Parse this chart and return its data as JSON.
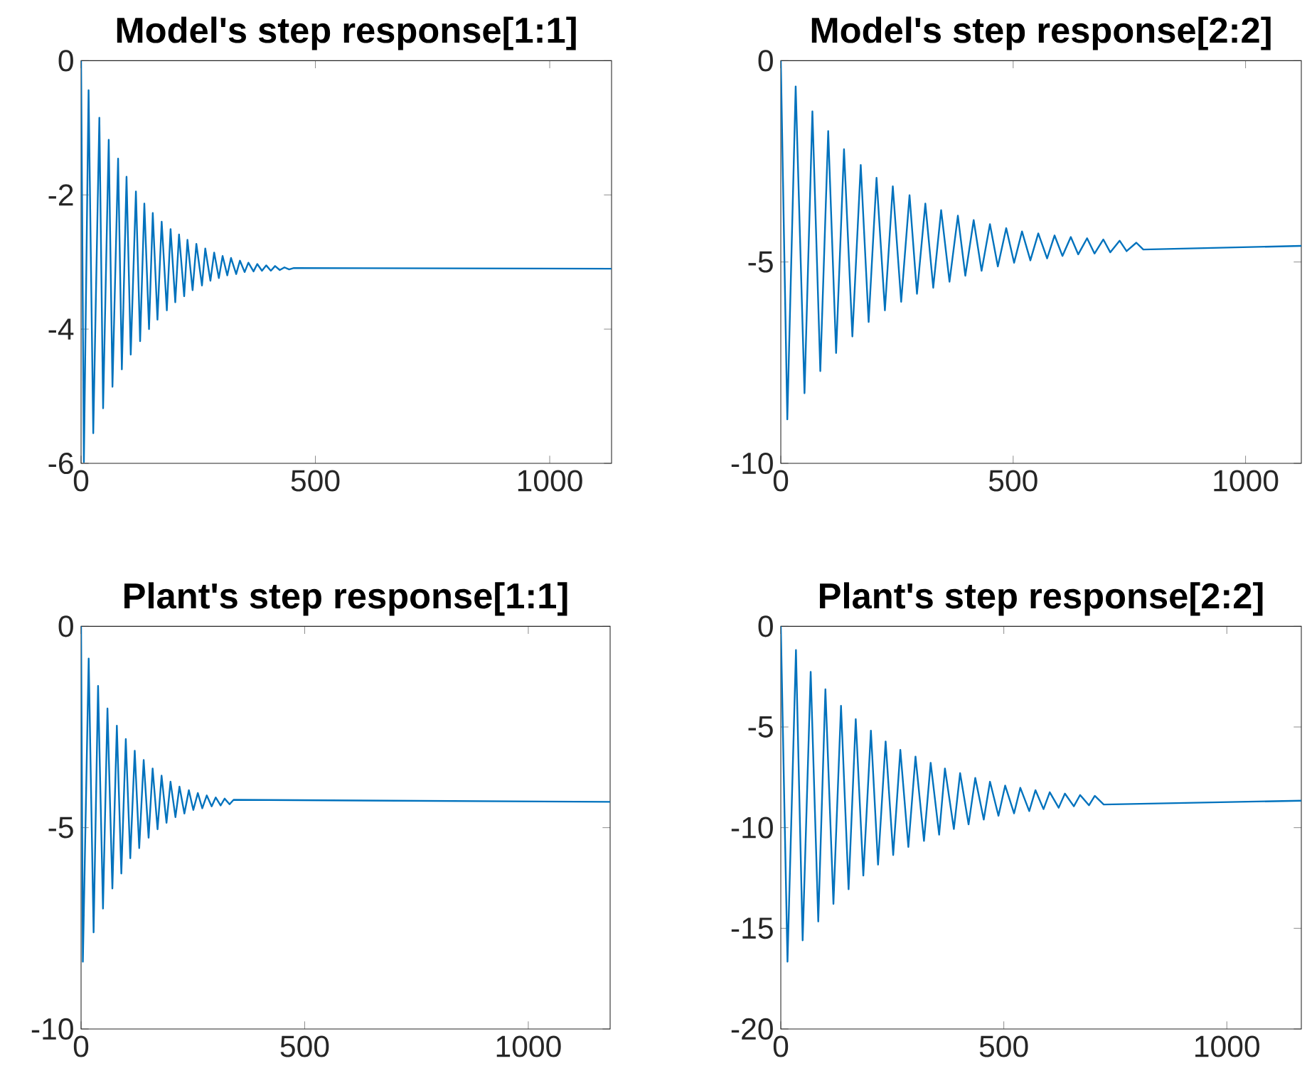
{
  "chart_data": [
    {
      "type": "line",
      "title": "Model's step response[1:1]",
      "color": "#0072bd",
      "xlim": [
        0,
        1132
      ],
      "ylim": [
        -6,
        0
      ],
      "xticks": [
        0,
        500,
        1000
      ],
      "yticks": [
        -6,
        -4,
        -2,
        0
      ],
      "x": [
        0,
        6,
        16,
        26,
        39,
        47,
        59,
        67,
        79,
        87,
        97,
        106,
        117,
        126,
        135,
        145,
        153,
        163,
        172,
        183,
        191,
        201,
        209,
        220,
        227,
        238,
        246,
        258,
        265,
        276,
        284,
        294,
        302,
        312,
        320,
        331,
        339,
        349,
        357,
        368,
        376,
        386,
        395,
        405,
        414,
        424,
        434,
        444,
        454,
        1132
      ],
      "values": [
        0,
        -5.98,
        -0.44,
        -5.55,
        -0.85,
        -5.18,
        -1.18,
        -4.86,
        -1.46,
        -4.6,
        -1.73,
        -4.38,
        -1.95,
        -4.18,
        -2.13,
        -4.0,
        -2.27,
        -3.86,
        -2.4,
        -3.72,
        -2.51,
        -3.6,
        -2.59,
        -3.51,
        -2.67,
        -3.42,
        -2.73,
        -3.35,
        -2.8,
        -3.28,
        -2.86,
        -3.24,
        -2.91,
        -3.2,
        -2.94,
        -3.18,
        -2.98,
        -3.15,
        -3.01,
        -3.14,
        -3.03,
        -3.13,
        -3.05,
        -3.13,
        -3.06,
        -3.12,
        -3.08,
        -3.11,
        -3.09,
        -3.1
      ]
    },
    {
      "type": "line",
      "title": "Model's step response[2:2]",
      "color": "#0072bd",
      "xlim": [
        0,
        1120
      ],
      "ylim": [
        -10,
        0
      ],
      "xticks": [
        0,
        500,
        1000
      ],
      "yticks": [
        -10,
        -5,
        0
      ],
      "x": [
        0,
        14,
        32,
        51,
        68,
        85,
        102,
        119,
        136,
        154,
        172,
        189,
        206,
        224,
        241,
        259,
        277,
        293,
        311,
        328,
        345,
        363,
        381,
        397,
        415,
        432,
        450,
        467,
        485,
        502,
        519,
        537,
        554,
        573,
        589,
        606,
        624,
        640,
        659,
        675,
        694,
        709,
        729,
        744,
        765,
        780,
        1120
      ],
      "values": [
        0,
        -8.91,
        -0.64,
        -8.26,
        -1.26,
        -7.71,
        -1.75,
        -7.26,
        -2.2,
        -6.85,
        -2.59,
        -6.49,
        -2.91,
        -6.2,
        -3.12,
        -5.99,
        -3.34,
        -5.79,
        -3.55,
        -5.64,
        -3.71,
        -5.49,
        -3.85,
        -5.34,
        -3.96,
        -5.22,
        -4.06,
        -5.11,
        -4.16,
        -5.02,
        -4.24,
        -4.96,
        -4.29,
        -4.91,
        -4.34,
        -4.85,
        -4.38,
        -4.81,
        -4.41,
        -4.79,
        -4.44,
        -4.76,
        -4.47,
        -4.73,
        -4.52,
        -4.69,
        -4.6
      ]
    },
    {
      "type": "line",
      "title": "Plant's step response[1:1]",
      "color": "#0072bd",
      "xlim": [
        0,
        1183
      ],
      "ylim": [
        -10,
        0
      ],
      "xticks": [
        0,
        500,
        1000
      ],
      "yticks": [
        -10,
        -5,
        0
      ],
      "x": [
        0,
        4,
        17,
        28,
        38,
        49,
        59,
        70,
        80,
        90,
        100,
        110,
        120,
        130,
        140,
        151,
        160,
        171,
        180,
        191,
        200,
        211,
        220,
        231,
        241,
        251,
        261,
        271,
        281,
        292,
        301,
        312,
        321,
        332,
        341,
        1183
      ],
      "values": [
        0,
        -8.33,
        -0.8,
        -7.6,
        -1.48,
        -7.01,
        -2.04,
        -6.51,
        -2.47,
        -6.14,
        -2.8,
        -5.76,
        -3.09,
        -5.51,
        -3.32,
        -5.25,
        -3.53,
        -5.04,
        -3.71,
        -4.88,
        -3.86,
        -4.74,
        -3.98,
        -4.65,
        -4.07,
        -4.56,
        -4.14,
        -4.52,
        -4.2,
        -4.47,
        -4.25,
        -4.45,
        -4.28,
        -4.42,
        -4.31,
        -4.36
      ]
    },
    {
      "type": "line",
      "title": "Plant's step response[2:2]",
      "color": "#0072bd",
      "xlim": [
        0,
        1167
      ],
      "ylim": [
        -20,
        0
      ],
      "xticks": [
        0,
        500,
        1000
      ],
      "yticks": [
        -20,
        -15,
        -10,
        -5,
        0
      ],
      "x": [
        0,
        15,
        34,
        49,
        67,
        84,
        100,
        118,
        135,
        152,
        168,
        185,
        202,
        218,
        235,
        252,
        268,
        286,
        302,
        321,
        336,
        355,
        368,
        388,
        402,
        421,
        436,
        455,
        469,
        488,
        503,
        523,
        537,
        557,
        571,
        589,
        603,
        623,
        637,
        657,
        671,
        691,
        704,
        724,
        1167
      ],
      "values": [
        0,
        -16.66,
        -1.18,
        -15.6,
        -2.26,
        -14.66,
        -3.13,
        -13.79,
        -3.95,
        -13.06,
        -4.61,
        -12.38,
        -5.18,
        -11.84,
        -5.72,
        -11.36,
        -6.14,
        -10.96,
        -6.47,
        -10.66,
        -6.78,
        -10.35,
        -7.06,
        -10.07,
        -7.29,
        -9.84,
        -7.53,
        -9.6,
        -7.72,
        -9.41,
        -7.91,
        -9.29,
        -8.02,
        -9.18,
        -8.14,
        -9.08,
        -8.24,
        -9.01,
        -8.31,
        -8.94,
        -8.38,
        -8.89,
        -8.42,
        -8.85,
        -8.66
      ]
    }
  ]
}
